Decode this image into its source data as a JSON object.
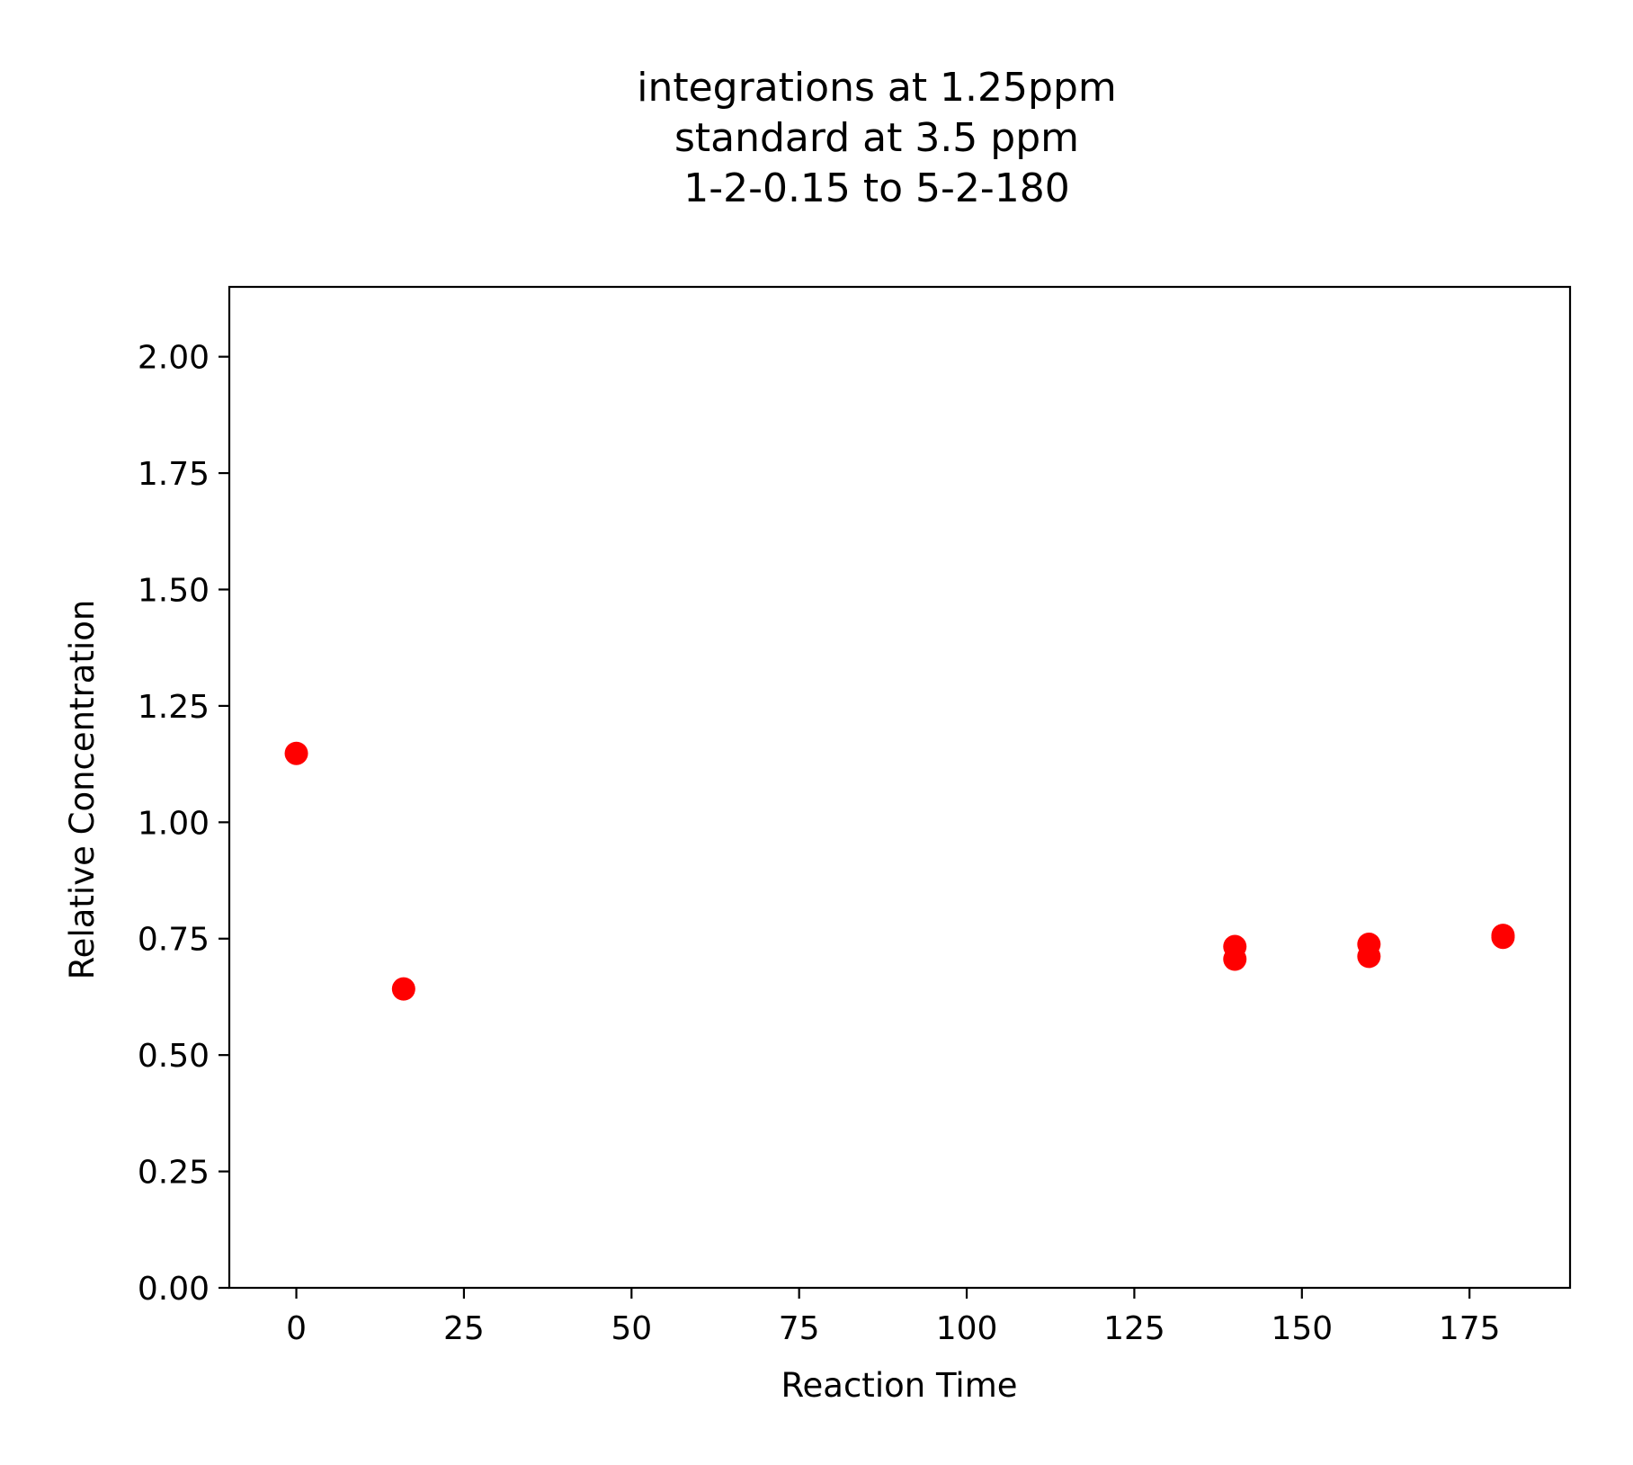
{
  "chart_data": {
    "type": "scatter",
    "title_lines": [
      "integrations at 1.25ppm",
      "standard at 3.5 ppm",
      "1-2-0.15 to 5-2-180"
    ],
    "xlabel": "Reaction Time",
    "ylabel": "Relative Concentration",
    "xlim": [
      -10,
      190
    ],
    "ylim": [
      0,
      2.15
    ],
    "xticks": [
      0,
      25,
      50,
      75,
      100,
      125,
      150,
      175
    ],
    "yticks": [
      0.0,
      0.25,
      0.5,
      0.75,
      1.0,
      1.25,
      1.5,
      1.75,
      2.0
    ],
    "ytick_labels": [
      "0.00",
      "0.25",
      "0.50",
      "0.75",
      "1.00",
      "1.25",
      "1.50",
      "1.75",
      "2.00"
    ],
    "grid": false,
    "marker_color": "#ff0000",
    "points": [
      {
        "x": 0,
        "y": 1.148
      },
      {
        "x": 16,
        "y": 0.642
      },
      {
        "x": 140,
        "y": 0.733
      },
      {
        "x": 140,
        "y": 0.706
      },
      {
        "x": 160,
        "y": 0.738
      },
      {
        "x": 160,
        "y": 0.712
      },
      {
        "x": 180,
        "y": 0.757
      },
      {
        "x": 180,
        "y": 0.753
      }
    ]
  }
}
